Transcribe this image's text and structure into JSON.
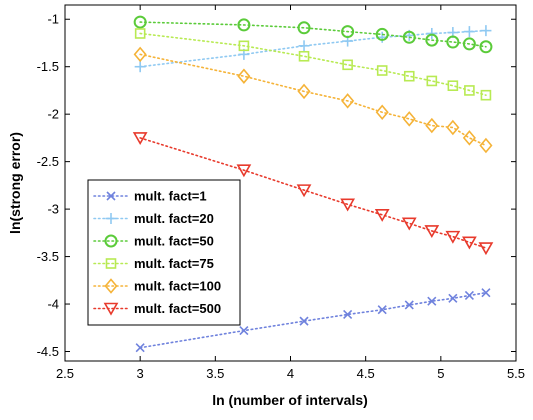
{
  "chart_data": {
    "type": "line",
    "title": "",
    "xlabel": "ln (number of intervals)",
    "ylabel": "ln(strong error)",
    "xlim": [
      2.5,
      5.5
    ],
    "ylim": [
      -4.6,
      -0.85
    ],
    "xticks": [
      2.5,
      3,
      3.5,
      4,
      4.5,
      5,
      5.5
    ],
    "xtick_labels": [
      "2.5",
      "3",
      "3.5",
      "4",
      "4.5",
      "5",
      "5.5"
    ],
    "yticks": [
      -4.5,
      -4,
      -3.5,
      -3,
      -2.5,
      -2,
      -1.5,
      -1
    ],
    "ytick_labels": [
      "-4.5",
      "-4",
      "-3.5",
      "-3",
      "-2.5",
      "-2",
      "-1.5",
      "-1"
    ],
    "grid": false,
    "legend_position": "lower-left",
    "x": [
      3.0,
      3.69,
      4.09,
      4.38,
      4.61,
      4.79,
      4.94,
      5.08,
      5.19,
      5.3
    ],
    "series": [
      {
        "name": "mult. fact=1",
        "marker": "x",
        "color": "#6f82dd",
        "values": [
          -4.46,
          -4.28,
          -4.18,
          -4.11,
          -4.06,
          -4.01,
          -3.97,
          -3.94,
          -3.91,
          -3.88
        ]
      },
      {
        "name": "mult. fact=20",
        "marker": "+",
        "color": "#8fc9f2",
        "values": [
          -1.5,
          -1.37,
          -1.28,
          -1.23,
          -1.19,
          -1.17,
          -1.15,
          -1.14,
          -1.13,
          -1.12
        ]
      },
      {
        "name": "mult. fact=50",
        "marker": "o",
        "color": "#5bcb3a",
        "values": [
          -1.03,
          -1.06,
          -1.09,
          -1.13,
          -1.16,
          -1.19,
          -1.22,
          -1.24,
          -1.26,
          -1.29
        ]
      },
      {
        "name": "mult. fact=75",
        "marker": "s",
        "color": "#b8ea53",
        "values": [
          -1.15,
          -1.28,
          -1.39,
          -1.48,
          -1.54,
          -1.6,
          -1.65,
          -1.7,
          -1.75,
          -1.8
        ]
      },
      {
        "name": "mult. fact=100",
        "marker": "d",
        "color": "#f5b338",
        "values": [
          -1.37,
          -1.6,
          -1.76,
          -1.86,
          -1.98,
          -2.05,
          -2.12,
          -2.14,
          -2.25,
          -2.33
        ]
      },
      {
        "name": "mult. fact=500",
        "marker": "v",
        "color": "#e83a2c",
        "values": [
          -2.25,
          -2.59,
          -2.8,
          -2.95,
          -3.06,
          -3.15,
          -3.23,
          -3.29,
          -3.35,
          -3.41
        ]
      }
    ]
  }
}
